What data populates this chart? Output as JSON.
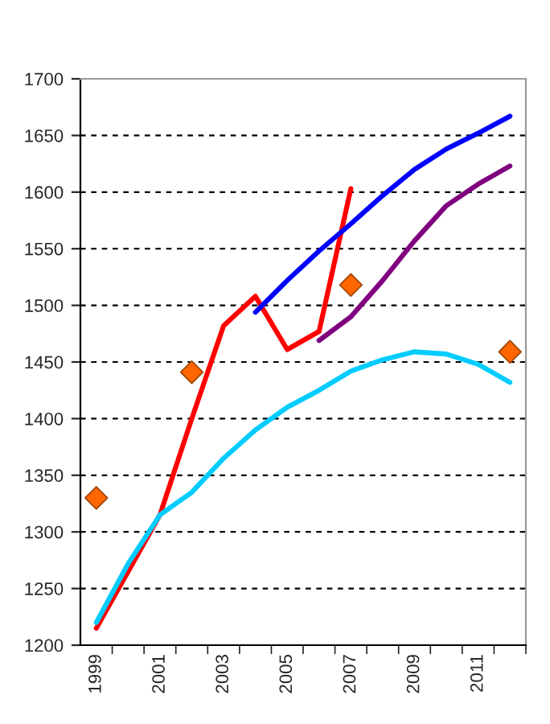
{
  "chart_data": {
    "type": "line",
    "categories": [
      "1999",
      null,
      "2001",
      null,
      "2003",
      null,
      "2005",
      null,
      "2007",
      null,
      "2009",
      null,
      "2011",
      null
    ],
    "series": [
      {
        "color": "#ff0000",
        "values": [
          1215,
          1265,
          1315,
          1400,
          1482,
          1508,
          1461,
          1477,
          1603,
          null,
          null,
          null,
          null,
          null
        ]
      },
      {
        "color": "#0000ff",
        "values": [
          null,
          null,
          null,
          null,
          null,
          1494,
          1522,
          1548,
          1572,
          1597,
          1620,
          1638,
          1652,
          1667
        ]
      },
      {
        "color": "#800080",
        "values": [
          null,
          null,
          null,
          null,
          null,
          null,
          null,
          1469,
          1490,
          1522,
          1557,
          1588,
          1607,
          1623
        ]
      },
      {
        "color": "#00ccff",
        "values": [
          1220,
          1272,
          1315,
          1335,
          1365,
          1390,
          1410,
          1425,
          1442,
          1452,
          1459,
          1457,
          1448,
          1432
        ]
      },
      {
        "type": "scatter",
        "marker": "diamond",
        "color": "#ff6600",
        "values": [
          1330,
          null,
          null,
          1441,
          null,
          null,
          null,
          null,
          1518,
          null,
          null,
          null,
          null,
          1459
        ]
      }
    ],
    "ylim": [
      1200,
      1700
    ],
    "yticks": [
      1200,
      1250,
      1300,
      1350,
      1400,
      1450,
      1500,
      1550,
      1600,
      1650,
      1700
    ],
    "grid": "y",
    "line_style": "solid"
  }
}
